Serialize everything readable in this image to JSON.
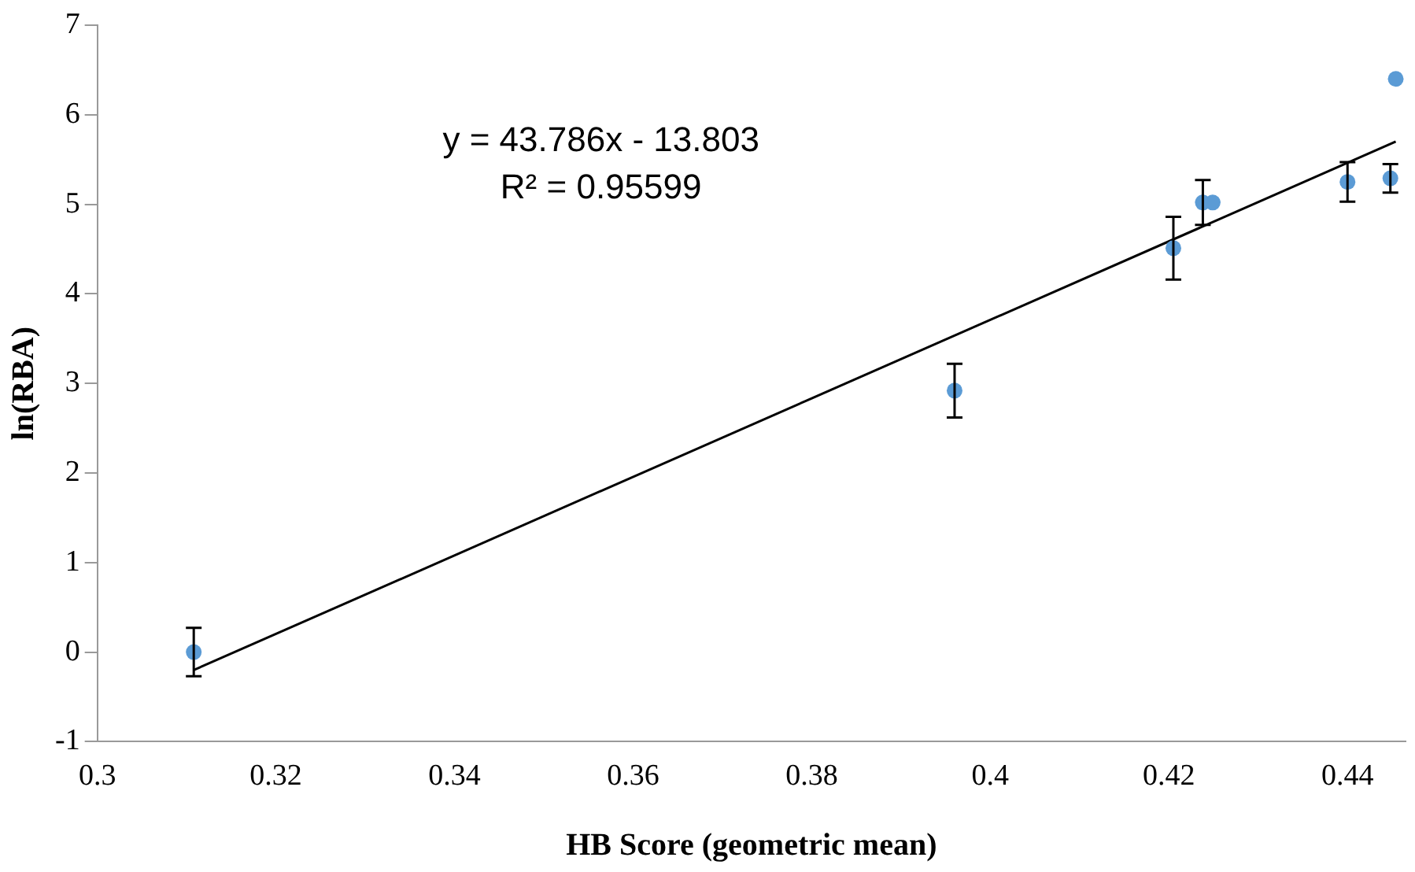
{
  "chart_data": {
    "type": "scatter",
    "xlabel": "HB Score (geometric mean)",
    "ylabel": "ln(RBA)",
    "annotations": [
      "y = 43.786x - 13.803",
      "R² = 0.95599"
    ],
    "series": [
      {
        "color": "#5b9bd5",
        "x": [
          0.3108,
          0.396,
          0.4205,
          0.4238,
          0.4249,
          0.44,
          0.4448,
          0.4454
        ],
        "values": [
          0,
          2.92,
          4.51,
          5.02,
          5.02,
          5.25,
          5.29,
          6.4
        ],
        "errors": [
          0.27,
          0.3,
          0.35,
          0.25,
          null,
          0.22,
          0.16,
          null
        ]
      },
      {
        "type": "line",
        "color": "#000000",
        "x": [
          0.3108,
          0.4454
        ],
        "values": [
          -0.2,
          5.7
        ],
        "marker": "none"
      }
    ],
    "xlim": [
      0.3,
      0.4465
    ],
    "xticks": [
      0.3,
      0.32,
      0.34,
      0.36,
      0.38,
      0.4,
      0.42,
      0.44
    ],
    "ylim": [
      -1,
      7
    ],
    "yticks": [
      -1,
      0,
      1,
      2,
      3,
      4,
      5,
      6,
      7
    ],
    "grid": false,
    "legend": false,
    "marker": "circle"
  }
}
